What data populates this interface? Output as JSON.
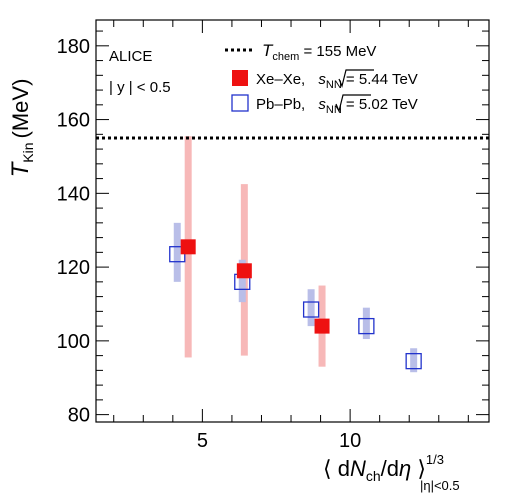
{
  "chart_data": {
    "type": "scatter",
    "title": "",
    "xlabel": "⟨ dN_ch/dη ⟩^1/3 |η|<0.5",
    "ylabel": "T_Kin (MeV)",
    "xlim": [
      1.4,
      14.7
    ],
    "ylim": [
      78,
      187
    ],
    "x_ticks": [
      5,
      10
    ],
    "x_tick_labels": [
      "5",
      "10"
    ],
    "y_ticks": [
      80,
      100,
      120,
      140,
      160,
      180
    ],
    "y_tick_labels": [
      "80",
      "100",
      "120",
      "140",
      "160",
      "180"
    ],
    "grid": false,
    "legend_position": "top-right",
    "ylabel_parts": {
      "symbol": "T",
      "sub": "Kin",
      "unit": "(MeV)"
    },
    "xlabel_parts": {
      "open": "⟨ d",
      "N": "N",
      "ch": "ch",
      "deta": "/d",
      "eta": "η",
      "close": " ⟩",
      "exp": "1/3",
      "sub": "|η|<0.5"
    },
    "annotations": [
      {
        "text": "ALICE"
      },
      {
        "text": "| y | < 0.5"
      }
    ],
    "reference_line": {
      "name": "T_chem = 155 MeV",
      "y": 155,
      "color": "#000000",
      "style": "dotted"
    },
    "legend": [
      {
        "kind": "line",
        "symbol": "T",
        "sub": "chem",
        "rest": " = 155 MeV"
      },
      {
        "kind": "marker",
        "system": "Xe–Xe, ",
        "rest": " = 5.44 TeV",
        "sub": "NN",
        "s": "s"
      },
      {
        "kind": "marker",
        "system": "Pb–Pb, ",
        "rest": " = 5.02 TeV",
        "sub": "NN",
        "s": "s"
      }
    ],
    "series": [
      {
        "name": "Xe–Xe, √s_NN = 5.44 TeV",
        "marker": "filled-square",
        "color": "#ee1111",
        "band_color": "#f7b8b8",
        "x": [
          4.52,
          6.42,
          9.05
        ],
        "y": [
          125.5,
          119.0,
          104.0
        ],
        "sys_low": [
          95.5,
          96.0,
          93.0
        ],
        "sys_high": [
          155.5,
          142.5,
          115.0
        ]
      },
      {
        "name": "Pb–Pb, √s_NN = 5.02 TeV",
        "marker": "open-square",
        "color": "#2233cc",
        "band_color": "#b9bee8",
        "x": [
          4.15,
          6.35,
          8.68,
          10.55,
          12.15
        ],
        "y": [
          123.5,
          116.0,
          108.5,
          104.0,
          94.5
        ],
        "sys_low": [
          116.0,
          110.5,
          104.0,
          100.5,
          91.5
        ],
        "sys_high": [
          132.0,
          122.0,
          114.0,
          109.0,
          98.0
        ]
      }
    ]
  }
}
